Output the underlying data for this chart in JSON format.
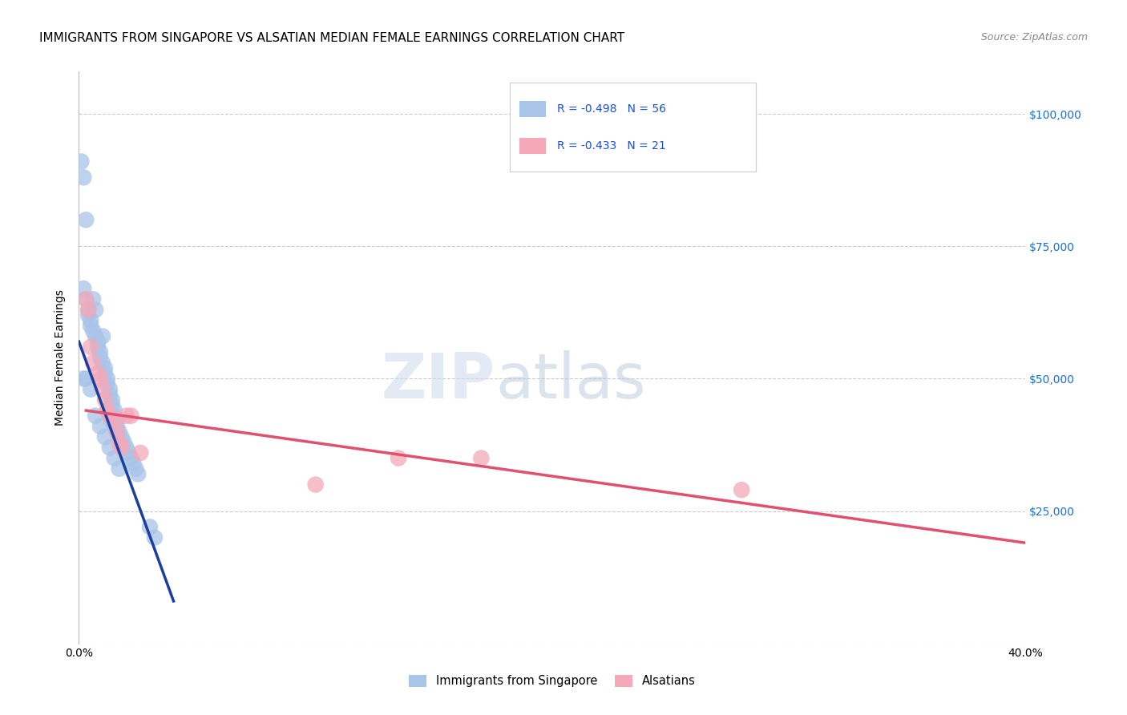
{
  "title": "IMMIGRANTS FROM SINGAPORE VS ALSATIAN MEDIAN FEMALE EARNINGS CORRELATION CHART",
  "source": "Source: ZipAtlas.com",
  "ylabel": "Median Female Earnings",
  "xlim": [
    0.0,
    0.4
  ],
  "ylim": [
    0,
    108000
  ],
  "yticks": [
    0,
    25000,
    50000,
    75000,
    100000
  ],
  "xtick_positions": [
    0.0,
    0.05,
    0.1,
    0.15,
    0.2,
    0.25,
    0.3,
    0.35,
    0.4
  ],
  "grid_color": "#cccccc",
  "background_color": "#ffffff",
  "singapore_color": "#a8c4e8",
  "alsatian_color": "#f4a8b8",
  "singapore_line_color": "#1a3fa0",
  "alsatian_line_color": "#e05070",
  "r_singapore": "-0.498",
  "n_singapore": "56",
  "r_alsatian": "-0.433",
  "n_alsatian": "21",
  "label_singapore": "Immigrants from Singapore",
  "label_alsatian": "Alsatians",
  "singapore_x": [
    0.001,
    0.002,
    0.002,
    0.003,
    0.003,
    0.004,
    0.004,
    0.005,
    0.005,
    0.006,
    0.006,
    0.007,
    0.007,
    0.008,
    0.008,
    0.009,
    0.009,
    0.01,
    0.01,
    0.011,
    0.011,
    0.012,
    0.012,
    0.013,
    0.013,
    0.014,
    0.014,
    0.015,
    0.015,
    0.016,
    0.016,
    0.017,
    0.018,
    0.019,
    0.02,
    0.021,
    0.022,
    0.023,
    0.024,
    0.025,
    0.002,
    0.003,
    0.012,
    0.013,
    0.014,
    0.015,
    0.016,
    0.03,
    0.032,
    0.005,
    0.007,
    0.009,
    0.011,
    0.013,
    0.015,
    0.017
  ],
  "singapore_y": [
    91000,
    88000,
    67000,
    80000,
    65000,
    63000,
    62000,
    61000,
    60000,
    65000,
    59000,
    63000,
    58000,
    57000,
    56000,
    55000,
    54000,
    58000,
    53000,
    52000,
    51000,
    50000,
    49000,
    48000,
    47000,
    46000,
    45000,
    44000,
    43000,
    42000,
    41000,
    40000,
    39000,
    38000,
    37000,
    36000,
    35000,
    34000,
    33000,
    32000,
    50000,
    50000,
    44000,
    43000,
    42000,
    41000,
    40000,
    22000,
    20000,
    48000,
    43000,
    41000,
    39000,
    37000,
    35000,
    33000
  ],
  "alsatian_x": [
    0.003,
    0.004,
    0.005,
    0.006,
    0.008,
    0.009,
    0.01,
    0.011,
    0.012,
    0.013,
    0.015,
    0.016,
    0.017,
    0.018,
    0.02,
    0.022,
    0.026,
    0.1,
    0.135,
    0.17,
    0.28
  ],
  "alsatian_y": [
    65000,
    63000,
    56000,
    53000,
    51000,
    50000,
    48000,
    46000,
    44000,
    43000,
    42000,
    40000,
    38000,
    37000,
    43000,
    43000,
    36000,
    30000,
    35000,
    35000,
    29000
  ],
  "sg_line_x0": 0.0,
  "sg_line_x1": 0.04,
  "sg_line_y0": 57000,
  "sg_line_y1": 8000,
  "al_line_x0": 0.003,
  "al_line_x1": 0.4,
  "al_line_y0": 44000,
  "al_line_y1": 19000
}
